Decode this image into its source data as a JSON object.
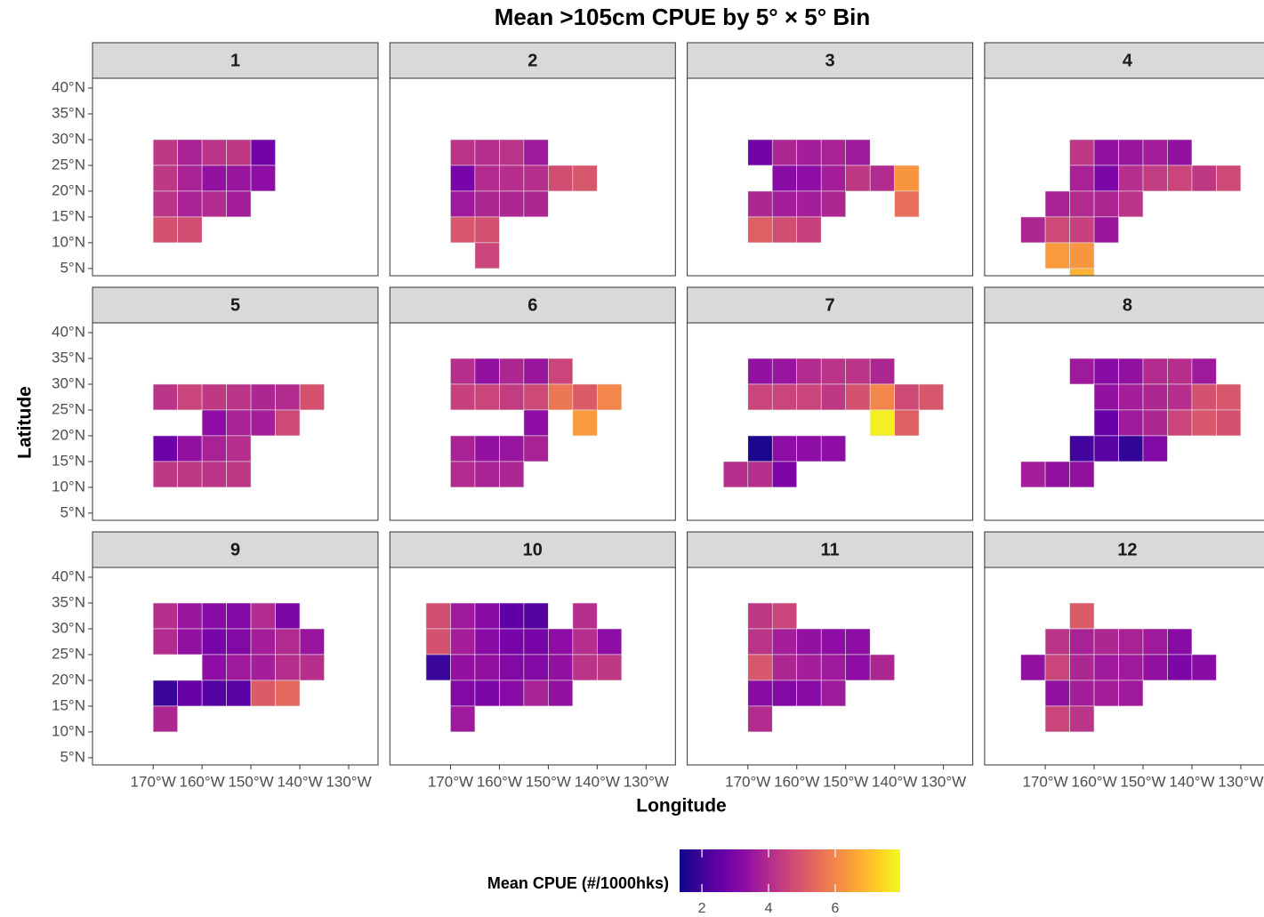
{
  "chart_data": {
    "type": "heatmap-facets",
    "title": "Mean >105cm CPUE by 5° × 5° Bin",
    "x_label": "Longitude",
    "y_label": "Latitude",
    "xlim": [
      -182.4,
      -124
    ],
    "ylim": [
      3.6,
      41.9
    ],
    "xticks": [
      {
        "value": -170,
        "label": "170°W"
      },
      {
        "value": -160,
        "label": "160°W"
      },
      {
        "value": -150,
        "label": "150°W"
      },
      {
        "value": -140,
        "label": "140°W"
      },
      {
        "value": -130,
        "label": "130°W"
      }
    ],
    "yticks": [
      {
        "value": 5,
        "label": "5°N"
      },
      {
        "value": 10,
        "label": "10°N"
      },
      {
        "value": 15,
        "label": "15°N"
      },
      {
        "value": 20,
        "label": "20°N"
      },
      {
        "value": 25,
        "label": "25°N"
      },
      {
        "value": 30,
        "label": "30°N"
      },
      {
        "value": 35,
        "label": "35°N"
      },
      {
        "value": 40,
        "label": "40°N"
      }
    ],
    "bin_size": 5,
    "colorbar_label": "Mean CPUE (#/1000hks)",
    "colorbar_lim": [
      1.33,
      7.95
    ],
    "colorbar_ticks": [
      2,
      4,
      6
    ],
    "colorscale": [
      "#0d0887",
      "#41049d",
      "#6a00a8",
      "#8f0da4",
      "#b12a90",
      "#cc4778",
      "#e16462",
      "#f2844b",
      "#fca636",
      "#fcce25",
      "#f0f921"
    ],
    "facets": [
      {
        "label": "1",
        "lon": [
          -170,
          -165,
          -160,
          -155,
          -150,
          -170,
          -165,
          -160,
          -155,
          -150,
          -170,
          -165,
          -160,
          -155,
          -170,
          -165
        ],
        "lat": [
          25,
          25,
          25,
          25,
          25,
          20,
          20,
          20,
          20,
          20,
          15,
          15,
          15,
          15,
          10,
          10
        ],
        "values": [
          4.3,
          3.8,
          4.2,
          4.3,
          2.8,
          4.3,
          3.8,
          3.4,
          3.5,
          3.3,
          4.2,
          3.8,
          4.0,
          3.7,
          4.9,
          4.8
        ]
      },
      {
        "label": "2",
        "lon": [
          -170,
          -165,
          -160,
          -155,
          -170,
          -165,
          -160,
          -155,
          -150,
          -145,
          -170,
          -165,
          -160,
          -155,
          -170,
          -165,
          -165
        ],
        "lat": [
          25,
          25,
          25,
          25,
          20,
          20,
          20,
          20,
          20,
          20,
          15,
          15,
          15,
          15,
          10,
          10,
          5
        ],
        "values": [
          4.2,
          4.1,
          4.2,
          3.6,
          2.9,
          4.0,
          4.1,
          4.1,
          4.8,
          5.0,
          3.6,
          3.9,
          3.9,
          3.9,
          5.0,
          4.9,
          4.6
        ]
      },
      {
        "label": "3",
        "lon": [
          -170,
          -165,
          -160,
          -155,
          -150,
          -165,
          -160,
          -155,
          -150,
          -145,
          -140,
          -170,
          -165,
          -160,
          -155,
          -140,
          -170,
          -165,
          -160
        ],
        "lat": [
          25,
          25,
          25,
          25,
          25,
          20,
          20,
          20,
          20,
          20,
          20,
          15,
          15,
          15,
          15,
          15,
          10,
          10,
          10
        ],
        "values": [
          2.8,
          3.9,
          3.7,
          3.8,
          3.6,
          3.2,
          3.3,
          3.7,
          4.3,
          4.0,
          6.3,
          3.9,
          3.7,
          3.7,
          3.9,
          5.5,
          5.2,
          4.8,
          4.5
        ]
      },
      {
        "label": "4",
        "lon": [
          -165,
          -160,
          -155,
          -150,
          -145,
          -165,
          -160,
          -155,
          -150,
          -145,
          -140,
          -135,
          -170,
          -165,
          -160,
          -155,
          -175,
          -170,
          -165,
          -160,
          -170,
          -165,
          -165
        ],
        "lat": [
          25,
          25,
          25,
          25,
          25,
          20,
          20,
          20,
          20,
          20,
          20,
          20,
          15,
          15,
          15,
          15,
          10,
          10,
          10,
          10,
          5,
          5,
          0
        ],
        "values": [
          4.3,
          3.4,
          3.5,
          3.7,
          3.4,
          3.8,
          3.0,
          4.1,
          4.4,
          4.6,
          4.3,
          4.7,
          3.8,
          4.0,
          3.9,
          4.2,
          3.9,
          4.7,
          4.5,
          3.5,
          6.4,
          6.3,
          6.8
        ]
      },
      {
        "label": "5",
        "lon": [
          -170,
          -165,
          -160,
          -155,
          -150,
          -145,
          -140,
          -160,
          -155,
          -150,
          -145,
          -170,
          -165,
          -160,
          -155,
          -170,
          -165,
          -160,
          -155
        ],
        "lat": [
          25,
          25,
          25,
          25,
          25,
          25,
          25,
          20,
          20,
          20,
          20,
          15,
          15,
          15,
          15,
          10,
          10,
          10,
          10
        ],
        "values": [
          4.2,
          4.6,
          4.3,
          4.2,
          3.9,
          4.0,
          4.9,
          3.3,
          3.8,
          3.7,
          4.7,
          2.7,
          3.4,
          3.8,
          4.1,
          4.3,
          4.3,
          4.2,
          4.3
        ]
      },
      {
        "label": "6",
        "lon": [
          -170,
          -165,
          -160,
          -155,
          -150,
          -170,
          -165,
          -160,
          -155,
          -150,
          -145,
          -140,
          -155,
          -145,
          -170,
          -165,
          -160,
          -155,
          -170,
          -165,
          -160
        ],
        "lat": [
          30,
          30,
          30,
          30,
          30,
          25,
          25,
          25,
          25,
          25,
          25,
          25,
          20,
          20,
          15,
          15,
          15,
          15,
          10,
          10,
          10
        ],
        "values": [
          4.1,
          3.4,
          3.9,
          3.5,
          4.6,
          4.5,
          4.6,
          4.4,
          4.7,
          5.7,
          5.1,
          6.0,
          3.3,
          6.4,
          3.8,
          3.4,
          3.5,
          3.8,
          4.0,
          3.8,
          3.9
        ]
      },
      {
        "label": "7",
        "lon": [
          -170,
          -165,
          -160,
          -155,
          -150,
          -145,
          -170,
          -165,
          -160,
          -155,
          -150,
          -145,
          -140,
          -135,
          -145,
          -140,
          -170,
          -165,
          -160,
          -155,
          -175,
          -170,
          -165
        ],
        "lat": [
          30,
          30,
          30,
          30,
          30,
          30,
          25,
          25,
          25,
          25,
          25,
          25,
          25,
          25,
          20,
          20,
          15,
          15,
          15,
          15,
          10,
          10,
          10
        ],
        "values": [
          3.4,
          3.5,
          4.0,
          4.2,
          4.2,
          3.9,
          4.6,
          4.6,
          4.6,
          4.3,
          4.9,
          6.0,
          4.7,
          5.0,
          7.8,
          5.2,
          1.5,
          3.3,
          3.3,
          3.3,
          4.1,
          4.1,
          3.0
        ]
      },
      {
        "label": "8",
        "lon": [
          -165,
          -160,
          -155,
          -150,
          -145,
          -140,
          -160,
          -155,
          -150,
          -145,
          -140,
          -135,
          -160,
          -155,
          -150,
          -145,
          -140,
          -135,
          -165,
          -160,
          -155,
          -150,
          -175,
          -170,
          -165
        ],
        "lat": [
          30,
          30,
          30,
          30,
          30,
          30,
          25,
          25,
          25,
          25,
          25,
          25,
          20,
          20,
          20,
          20,
          20,
          20,
          15,
          15,
          15,
          15,
          10,
          10,
          10
        ],
        "values": [
          3.6,
          3.2,
          3.4,
          4.0,
          4.1,
          3.6,
          3.4,
          3.7,
          3.9,
          4.1,
          4.9,
          5.0,
          2.6,
          3.6,
          3.9,
          4.6,
          5.0,
          4.9,
          2.0,
          2.4,
          1.8,
          3.1,
          3.7,
          3.4,
          3.4
        ]
      },
      {
        "label": "9",
        "lon": [
          -170,
          -165,
          -160,
          -155,
          -150,
          -145,
          -170,
          -165,
          -160,
          -155,
          -150,
          -145,
          -140,
          -160,
          -155,
          -150,
          -145,
          -140,
          -170,
          -165,
          -160,
          -155,
          -150,
          -145,
          -170
        ],
        "lat": [
          30,
          30,
          30,
          30,
          30,
          30,
          25,
          25,
          25,
          25,
          25,
          25,
          25,
          20,
          20,
          20,
          20,
          20,
          15,
          15,
          15,
          15,
          15,
          15,
          10
        ],
        "values": [
          4.1,
          3.5,
          3.2,
          3.1,
          4.0,
          3.0,
          4.0,
          3.4,
          2.9,
          3.1,
          3.7,
          4.0,
          3.5,
          3.3,
          3.6,
          3.7,
          4.1,
          4.1,
          1.9,
          2.6,
          2.3,
          2.4,
          5.1,
          5.4,
          3.9
        ]
      },
      {
        "label": "10",
        "lon": [
          -175,
          -170,
          -165,
          -160,
          -155,
          -145,
          -175,
          -170,
          -165,
          -160,
          -155,
          -150,
          -145,
          -140,
          -175,
          -170,
          -165,
          -160,
          -155,
          -150,
          -145,
          -140,
          -170,
          -165,
          -160,
          -155,
          -150,
          -170
        ],
        "lat": [
          30,
          30,
          30,
          30,
          30,
          30,
          25,
          25,
          25,
          25,
          25,
          25,
          25,
          25,
          20,
          20,
          20,
          20,
          20,
          20,
          20,
          20,
          15,
          15,
          15,
          15,
          15,
          10
        ],
        "values": [
          4.8,
          3.6,
          3.2,
          2.5,
          2.3,
          4.1,
          4.9,
          3.7,
          3.2,
          2.9,
          2.9,
          3.3,
          4.1,
          3.3,
          1.9,
          3.4,
          3.4,
          3.1,
          3.1,
          3.4,
          4.2,
          4.3,
          3.1,
          3.0,
          3.2,
          3.8,
          3.4,
          3.6
        ]
      },
      {
        "label": "11",
        "lon": [
          -170,
          -165,
          -170,
          -165,
          -160,
          -155,
          -150,
          -170,
          -165,
          -160,
          -155,
          -150,
          -145,
          -170,
          -165,
          -160,
          -155,
          -170
        ],
        "lat": [
          30,
          30,
          25,
          25,
          25,
          25,
          25,
          20,
          20,
          20,
          20,
          20,
          20,
          15,
          15,
          15,
          15,
          10
        ],
        "values": [
          4.3,
          4.6,
          4.2,
          3.7,
          3.4,
          3.3,
          3.3,
          5.0,
          3.9,
          3.7,
          3.6,
          3.3,
          3.9,
          3.2,
          3.1,
          3.2,
          3.6,
          4.0
        ]
      },
      {
        "label": "12",
        "lon": [
          -165,
          -170,
          -165,
          -160,
          -155,
          -150,
          -145,
          -175,
          -170,
          -165,
          -160,
          -155,
          -150,
          -145,
          -140,
          -170,
          -165,
          -160,
          -155,
          -170,
          -165
        ],
        "lat": [
          30,
          25,
          25,
          25,
          25,
          25,
          25,
          20,
          20,
          20,
          20,
          20,
          20,
          20,
          20,
          15,
          15,
          15,
          15,
          10,
          10
        ],
        "values": [
          5.1,
          4.2,
          3.8,
          3.9,
          3.8,
          3.6,
          3.2,
          3.4,
          4.6,
          3.9,
          3.6,
          3.6,
          3.4,
          3.0,
          3.2,
          3.4,
          3.7,
          3.7,
          3.6,
          4.6,
          4.2
        ]
      }
    ]
  }
}
